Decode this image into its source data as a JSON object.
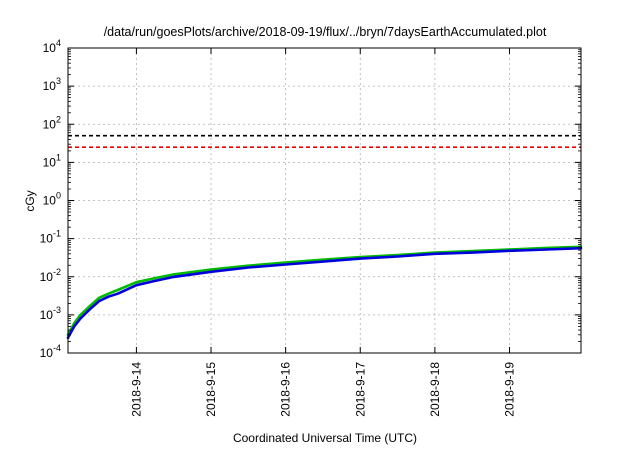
{
  "chart_data": {
    "type": "line",
    "title": "/data/run/goesPlots/archive/2018-09-19/flux/../bryn/7daysEarthAccumulated.plot",
    "xlabel": "Coordinated Universal Time (UTC)",
    "ylabel": "cGy",
    "yscale": "log",
    "xlim": [
      "2018-09-13T02:00",
      "2018-09-19T23:00"
    ],
    "ylim": [
      0.0001,
      10000
    ],
    "x_ticks": [
      "2018-9-14",
      "2018-9-15",
      "2018-9-16",
      "2018-9-17",
      "2018-9-18",
      "2018-9-19"
    ],
    "y_ticks": [
      {
        "value": 0.0001,
        "base": "10",
        "exp": "-4"
      },
      {
        "value": 0.001,
        "base": "10",
        "exp": "-3"
      },
      {
        "value": 0.01,
        "base": "10",
        "exp": "-2"
      },
      {
        "value": 0.1,
        "base": "10",
        "exp": "-1"
      },
      {
        "value": 1,
        "base": "10",
        "exp": "0"
      },
      {
        "value": 10,
        "base": "10",
        "exp": "1"
      },
      {
        "value": 100,
        "base": "10",
        "exp": "2"
      },
      {
        "value": 1000,
        "base": "10",
        "exp": "3"
      },
      {
        "value": 10000,
        "base": "10",
        "exp": "4"
      }
    ],
    "grid": true,
    "thresholds": [
      {
        "value": 50,
        "color": "#000000",
        "style": "dashed"
      },
      {
        "value": 25,
        "color": "#ee0000",
        "style": "dashed"
      }
    ],
    "series": [
      {
        "color": "#00bb00",
        "x": [
          "2018-09-13T02:00",
          "2018-09-13T04:00",
          "2018-09-13T06:00",
          "2018-09-13T09:00",
          "2018-09-13T12:00",
          "2018-09-13T15:00",
          "2018-09-13T18:00",
          "2018-09-14T00:00",
          "2018-09-14T06:00",
          "2018-09-14T12:00",
          "2018-09-15T00:00",
          "2018-09-15T12:00",
          "2018-09-16T00:00",
          "2018-09-16T12:00",
          "2018-09-17T00:00",
          "2018-09-17T12:00",
          "2018-09-18T00:00",
          "2018-09-18T12:00",
          "2018-09-19T00:00",
          "2018-09-19T12:00",
          "2018-09-19T23:00"
        ],
        "y": [
          0.0003,
          0.0006,
          0.001,
          0.0017,
          0.0028,
          0.0036,
          0.0045,
          0.0072,
          0.0092,
          0.0115,
          0.0155,
          0.0195,
          0.0235,
          0.028,
          0.033,
          0.037,
          0.043,
          0.047,
          0.052,
          0.057,
          0.061
        ]
      },
      {
        "color": "#0000dd",
        "x": [
          "2018-09-13T02:00",
          "2018-09-13T04:00",
          "2018-09-13T06:00",
          "2018-09-13T09:00",
          "2018-09-13T12:00",
          "2018-09-13T15:00",
          "2018-09-13T18:00",
          "2018-09-14T00:00",
          "2018-09-14T06:00",
          "2018-09-14T12:00",
          "2018-09-15T00:00",
          "2018-09-15T12:00",
          "2018-09-16T00:00",
          "2018-09-16T12:00",
          "2018-09-17T00:00",
          "2018-09-17T12:00",
          "2018-09-18T00:00",
          "2018-09-18T12:00",
          "2018-09-19T00:00",
          "2018-09-19T12:00",
          "2018-09-19T23:00"
        ],
        "y": [
          0.00025,
          0.0005,
          0.0008,
          0.0014,
          0.0023,
          0.003,
          0.0036,
          0.006,
          0.0078,
          0.0099,
          0.0135,
          0.0175,
          0.021,
          0.025,
          0.03,
          0.034,
          0.04,
          0.043,
          0.048,
          0.052,
          0.056
        ]
      }
    ]
  }
}
